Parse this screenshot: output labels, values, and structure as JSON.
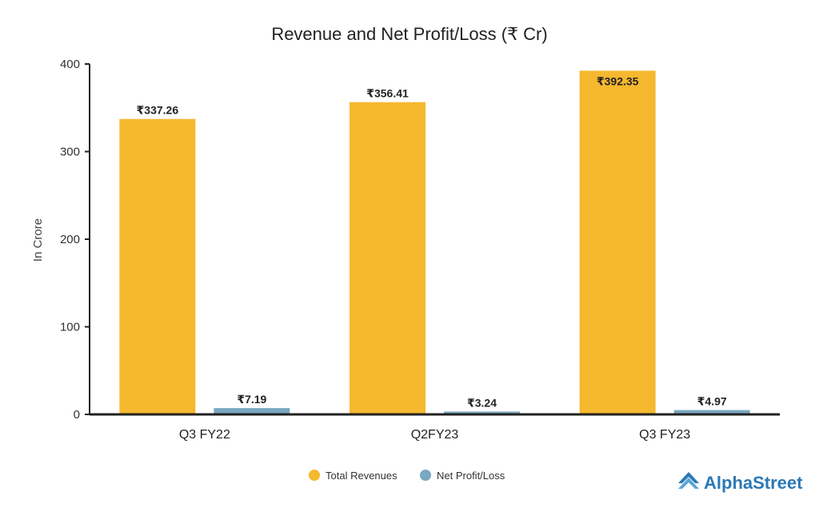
{
  "chart_data": {
    "type": "bar",
    "title": "Revenue and Net Profit/Loss (₹ Cr)",
    "xlabel": "",
    "ylabel": "In Crore",
    "ylim": [
      0,
      400
    ],
    "yticks": [
      0,
      100,
      200,
      300,
      400
    ],
    "grid": false,
    "legend_position": "bottom",
    "categories": [
      "Q3 FY22",
      "Q2FY23",
      "Q3 FY23"
    ],
    "series": [
      {
        "name": "Total Revenues",
        "color": "#f5b82e",
        "values": [
          337.26,
          356.41,
          392.35
        ],
        "labels": [
          "₹337.26",
          "₹356.41",
          "₹392.35"
        ]
      },
      {
        "name": "Net Profit/Loss",
        "color": "#7aa7c1",
        "values": [
          7.19,
          3.24,
          4.97
        ],
        "labels": [
          "₹7.19",
          "₹3.24",
          "₹4.97"
        ]
      }
    ]
  },
  "brand": {
    "name": "AlphaStreet",
    "color": "#2b78b5",
    "icon": "alphastreet-logo-icon"
  }
}
